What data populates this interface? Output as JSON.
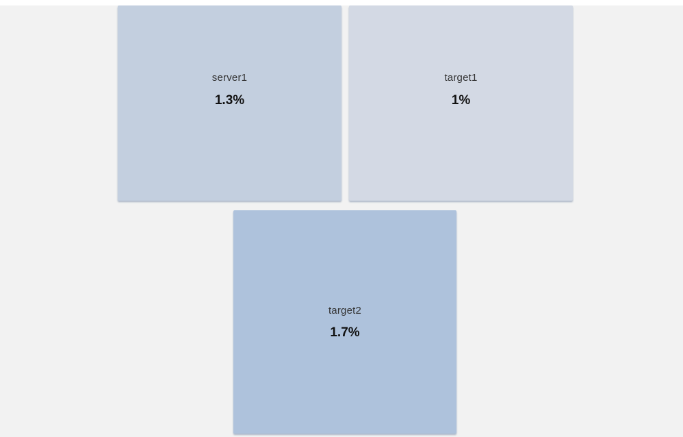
{
  "tiles": [
    {
      "name": "server1",
      "value": "1.3%",
      "color": "#c3cfdf"
    },
    {
      "name": "target1",
      "value": "1%",
      "color": "#d3d9e4"
    },
    {
      "name": "target2",
      "value": "1.7%",
      "color": "#aec2dc"
    }
  ],
  "colors": {
    "background": "#f2f2f2",
    "text": "#333333",
    "value_text": "#111111"
  }
}
